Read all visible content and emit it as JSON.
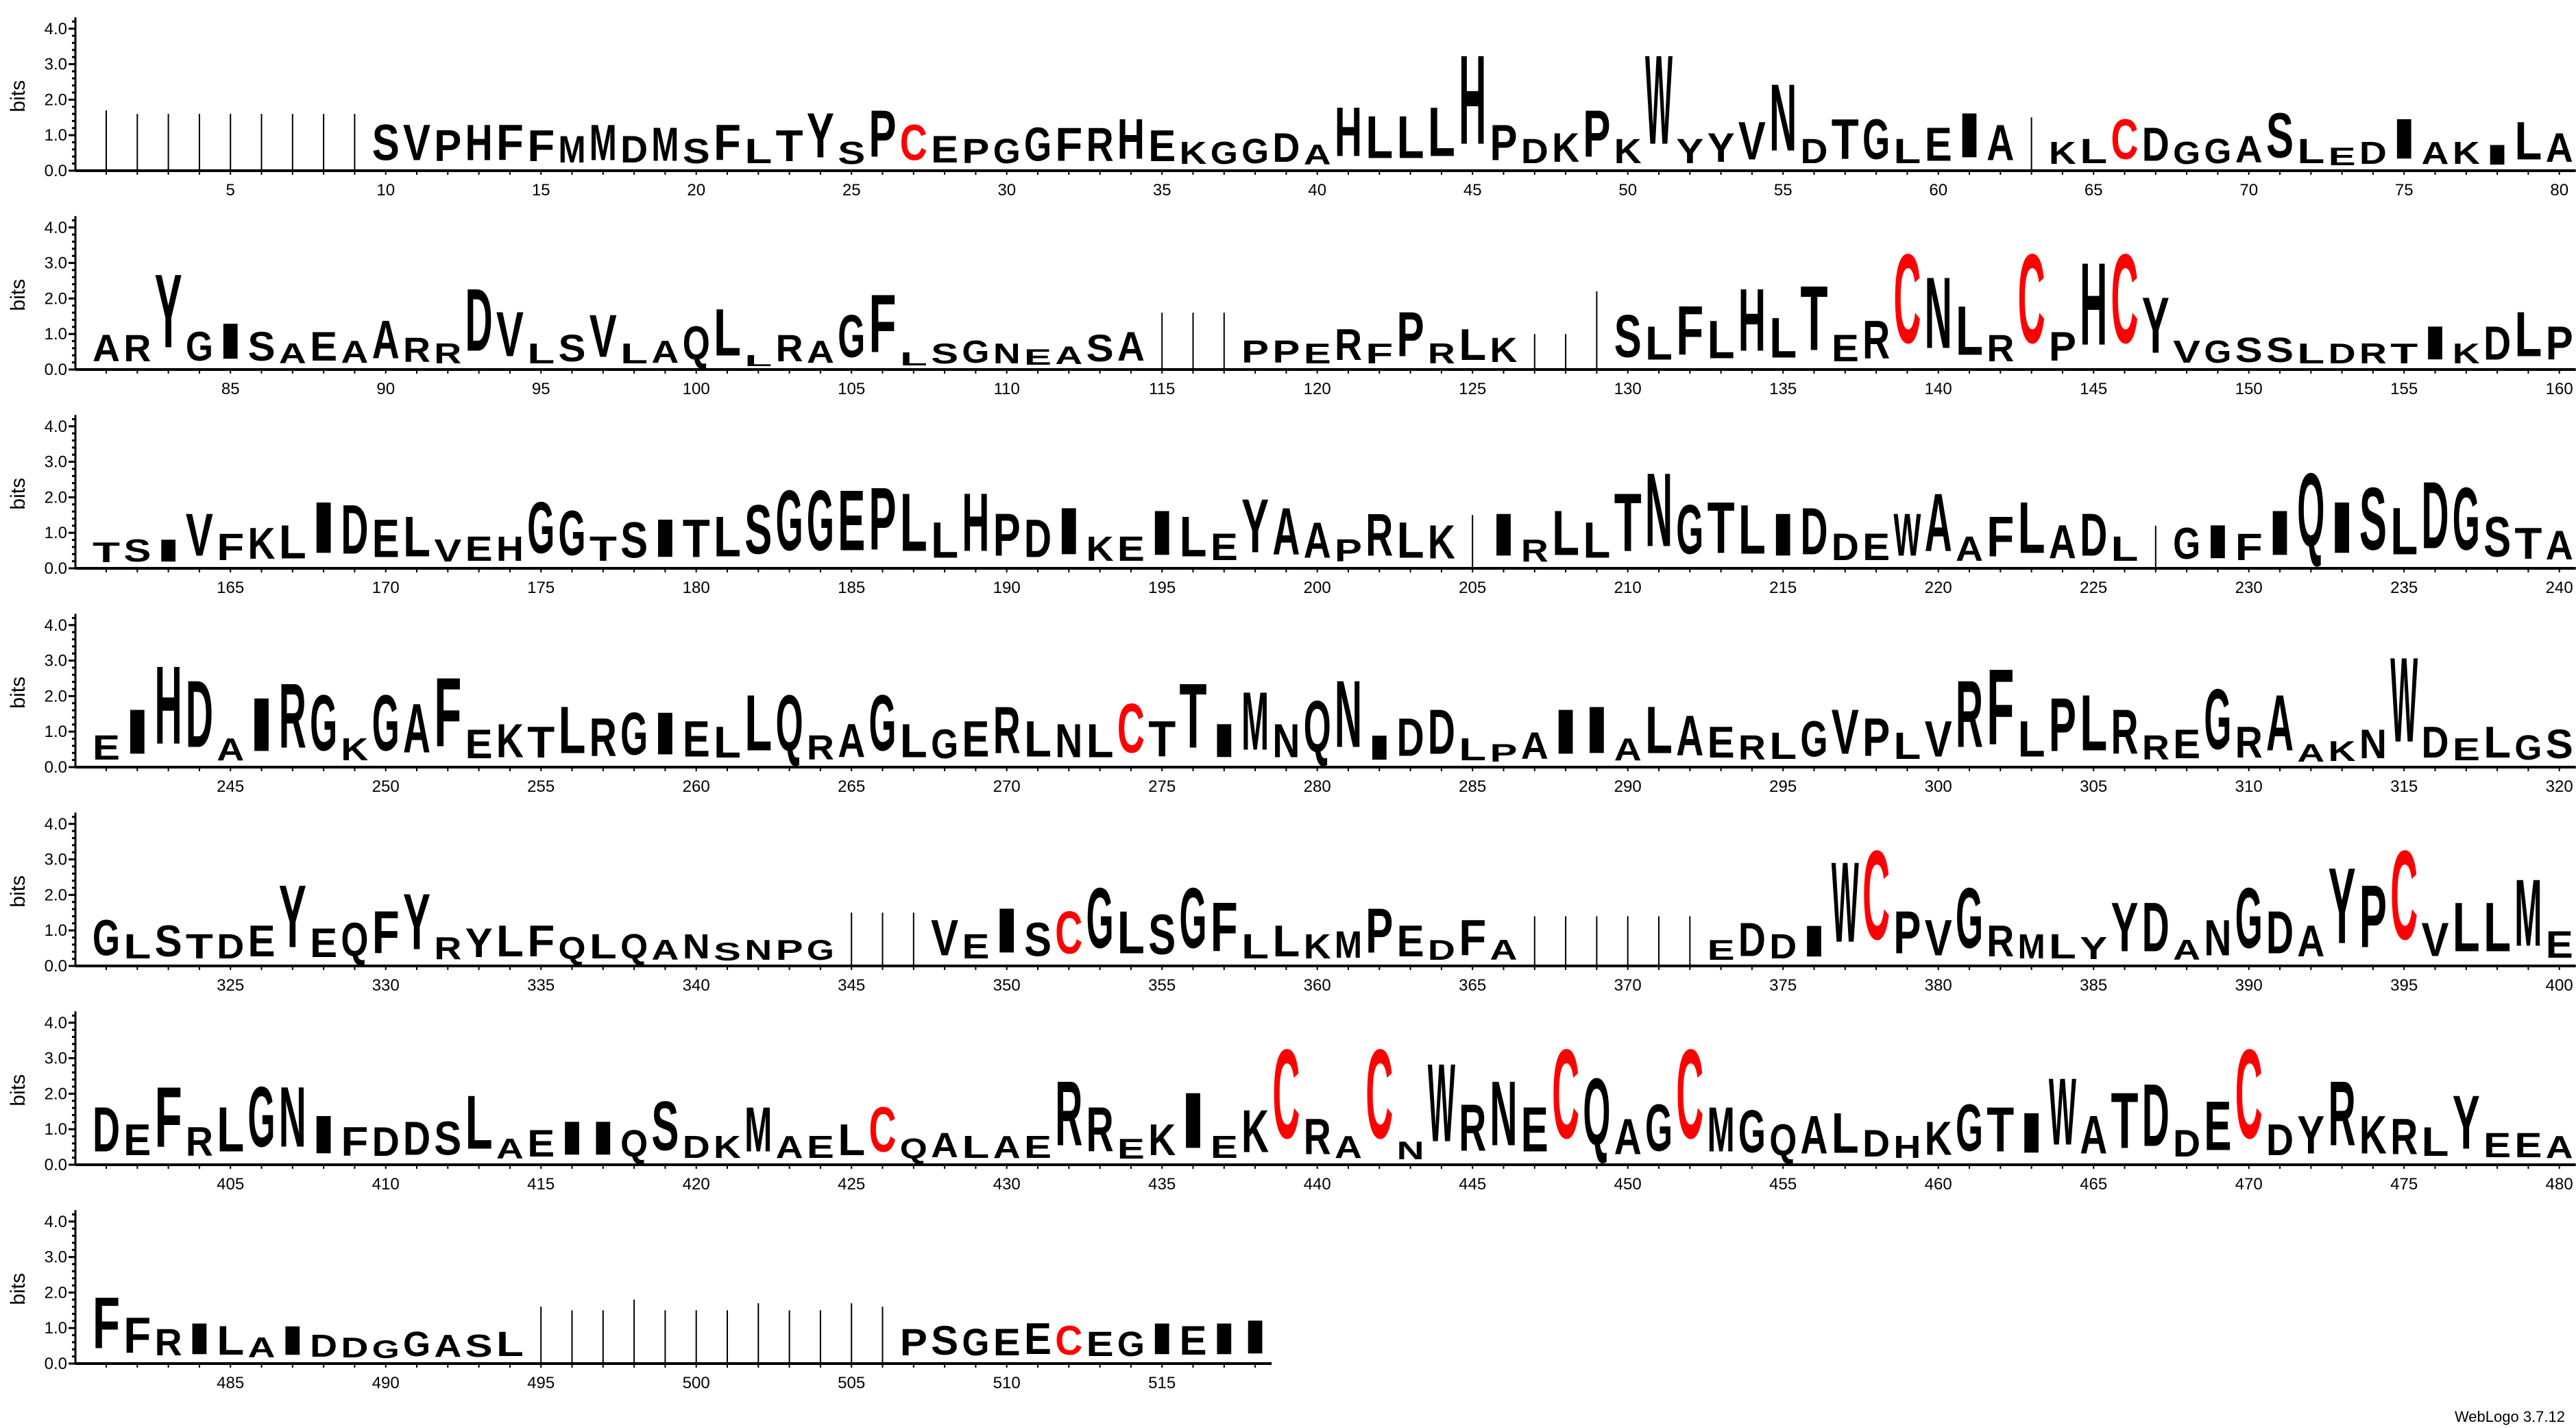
{
  "chart_data": {
    "type": "sequence-logo",
    "ylabel": "bits",
    "ylim": [
      0,
      4.32
    ],
    "yticks": [
      "0.0",
      "1.0",
      "2.0",
      "3.0",
      "4.0"
    ],
    "x_tick_step": 5,
    "positions_per_row": 80,
    "first_position": 1,
    "last_position": 518,
    "gap_symbol": "-",
    "colors": {
      "default": "#000000",
      "C": "#ff0000",
      "axis": "#000000",
      "gap_line": "#000000"
    },
    "top_residues": "---------SVPHFFMMDMSFLTYSPCEPGGFRHEKGGDAHLLLHPDKPKWYYVNDTGLEIA-KLCDGGASLEDIAKILAARYGISAEAARRDVLSVLAQLLRAGFLSGNEASA---PPERFPRLK---SLFLHLTERCNLRCPHCYVGSSLDRTIKDLPTSIVFKLIDELVEHGGTSITLSGGEPLLHPDIKEILEYAAPRLK-IRLLTNGTLIDDEWAAFLADL-GIFIQISLDGSTAEIHDAIRGKGAFEKTLRGIELLQRAGLGERLNLCTTIMNQNIDDLPAIIALAERLGVPLVRFLPLRREGRAAKNWDELGSGLSTDEYEQFYRYLFQLQANSNPG---VEISCGLSGFLLKMPEDFA------EDDIWCPVGRMLYYDANGDAYPCVLLMEDEFRLGNIFDDSLAEIIQSDKMAELCQALAERREKIEKCRACNWRNECQAGCMGQALDHKGTIWATDDECDYRKRLYEEAFFRILAIDDGGASL------------PSGEECEGIEII",
    "bits": [
      1.7,
      1.6,
      1.6,
      1.6,
      1.6,
      1.6,
      1.6,
      1.6,
      1.6,
      1.6,
      1.6,
      1.4,
      1.6,
      1.6,
      1.4,
      1.2,
      1.6,
      1.2,
      1.5,
      1.1,
      1.6,
      1.1,
      1.4,
      2.0,
      1.0,
      2.1,
      1.6,
      1.2,
      1.1,
      1.1,
      1.5,
      1.5,
      1.5,
      1.8,
      1.4,
      1.0,
      1.0,
      1.1,
      1.3,
      0.9,
      2.2,
      1.9,
      1.9,
      2.2,
      4.0,
      1.6,
      1.1,
      1.3,
      2.1,
      1.1,
      4.0,
      1.1,
      1.3,
      1.7,
      3.0,
      1.1,
      1.8,
      1.8,
      1.1,
      1.5,
      2.0,
      1.6,
      1.5,
      1.0,
      1.1,
      1.8,
      1.5,
      1.0,
      1.1,
      1.2,
      2.0,
      1.1,
      0.8,
      1.0,
      1.8,
      1.0,
      1.0,
      0.9,
      1.7,
      1.3,
      1.2,
      1.2,
      3.3,
      1.3,
      1.6,
      1.3,
      0.9,
      1.3,
      1.0,
      1.7,
      1.1,
      0.9,
      2.8,
      2.0,
      0.9,
      1.2,
      1.9,
      0.9,
      1.0,
      1.5,
      2.1,
      0.5,
      1.2,
      1.0,
      1.9,
      2.6,
      0.6,
      0.9,
      1.0,
      0.9,
      0.7,
      0.8,
      1.2,
      1.3,
      1.6,
      1.6,
      1.6,
      1.0,
      1.0,
      0.9,
      1.4,
      0.9,
      2.0,
      0.9,
      1.4,
      1.1,
      1.0,
      1.0,
      2.2,
      1.9,
      1.5,
      2.2,
      1.7,
      2.8,
      1.8,
      2.9,
      1.2,
      1.7,
      4.0,
      3.2,
      2.2,
      1.2,
      4.0,
      1.3,
      3.7,
      4.0,
      2.5,
      1.0,
      1.0,
      1.1,
      1.1,
      0.9,
      0.9,
      0.9,
      0.9,
      1.5,
      0.9,
      1.5,
      2.0,
      1.5,
      0.9,
      1.0,
      1.0,
      1.9,
      1.2,
      1.4,
      1.5,
      2.3,
      2.2,
      1.7,
      1.8,
      1.0,
      1.1,
      1.1,
      2.3,
      2.0,
      1.1,
      1.6,
      1.7,
      1.7,
      1.8,
      2.2,
      2.7,
      2.7,
      2.7,
      2.8,
      2.6,
      1.6,
      2.6,
      1.9,
      1.7,
      2.1,
      1.1,
      1.1,
      2.0,
      1.8,
      1.2,
      2.4,
      2.1,
      1.6,
      1.0,
      1.9,
      1.6,
      1.5,
      1.5,
      1.9,
      1.0,
      2.0,
      1.6,
      2.6,
      3.3,
      2.2,
      2.3,
      2.2,
      1.9,
      2.1,
      1.2,
      1.2,
      1.9,
      2.6,
      1.1,
      1.8,
      2.3,
      1.5,
      1.9,
      1.1,
      1.2,
      1.4,
      1.5,
      1.2,
      2.0,
      3.3,
      2.3,
      2.8,
      2.1,
      3.0,
      2.8,
      1.8,
      1.4,
      1.3,
      1.1,
      2.0,
      3.5,
      3.0,
      1.0,
      2.4,
      2.9,
      2.5,
      1.0,
      2.5,
      2.2,
      3.1,
      1.3,
      1.5,
      1.4,
      2.1,
      1.7,
      1.9,
      1.9,
      1.6,
      1.4,
      2.5,
      2.5,
      1.1,
      1.5,
      2.5,
      1.5,
      1.3,
      1.6,
      2.1,
      1.6,
      1.5,
      1.5,
      2.2,
      1.6,
      2.9,
      1.5,
      2.6,
      1.5,
      2.3,
      3.0,
      1.1,
      1.7,
      2.0,
      1.0,
      0.8,
      1.2,
      2.0,
      2.1,
      1.0,
      2.1,
      1.8,
      1.4,
      1.1,
      1.2,
      1.6,
      2.0,
      1.7,
      1.2,
      1.6,
      3.0,
      3.4,
      1.6,
      2.4,
      2.5,
      2.0,
      1.1,
      1.3,
      2.7,
      1.4,
      2.5,
      0.8,
      0.9,
      1.3,
      3.8,
      1.4,
      1.0,
      1.4,
      1.1,
      1.3,
      1.6,
      1.1,
      1.4,
      1.1,
      1.1,
      1.4,
      2.8,
      1.3,
      1.5,
      1.9,
      2.5,
      1.0,
      1.3,
      1.4,
      1.4,
      1.0,
      1.1,
      1.1,
      0.9,
      1.1,
      0.8,
      0.9,
      0.9,
      0.9,
      1.5,
      1.5,
      1.5,
      1.6,
      1.1,
      2.0,
      1.5,
      1.9,
      2.7,
      1.9,
      1.8,
      2.7,
      2.2,
      1.1,
      1.4,
      1.1,
      1.2,
      2.0,
      1.4,
      0.9,
      1.6,
      0.9,
      1.4,
      1.4,
      1.4,
      1.4,
      1.4,
      1.4,
      0.9,
      1.5,
      1.1,
      1.4,
      3.6,
      4.0,
      1.9,
      1.6,
      2.7,
      1.4,
      1.1,
      1.1,
      1.0,
      2.2,
      2.2,
      0.9,
      1.6,
      2.7,
      1.9,
      1.4,
      3.4,
      2.8,
      4.0,
      1.5,
      2.2,
      2.2,
      3.0,
      1.2,
      2.0,
      1.4,
      2.7,
      1.3,
      2.0,
      2.7,
      2.7,
      1.7,
      1.3,
      1.3,
      1.5,
      1.5,
      2.4,
      0.9,
      1.2,
      1.5,
      1.5,
      1.2,
      2.2,
      1.0,
      1.0,
      2.0,
      1.0,
      1.0,
      1.4,
      2.0,
      0.9,
      1.1,
      1.0,
      1.0,
      1.0,
      2.9,
      2.0,
      0.9,
      1.4,
      2.5,
      1.0,
      1.9,
      4.0,
      1.6,
      1.0,
      4.0,
      0.8,
      3.5,
      2.1,
      2.9,
      2.0,
      4.0,
      3.0,
      1.6,
      2.1,
      4.0,
      2.0,
      1.9,
      1.4,
      1.7,
      1.8,
      1.2,
      1.0,
      1.5,
      2.1,
      2.0,
      1.8,
      3.0,
      1.7,
      2.5,
      2.8,
      1.2,
      2.2,
      4.0,
      1.4,
      1.7,
      2.9,
      1.7,
      1.6,
      1.3,
      2.4,
      1.1,
      1.1,
      1.0,
      2.3,
      1.6,
      1.2,
      1.4,
      1.3,
      0.9,
      1.3,
      1.0,
      0.9,
      0.8,
      1.1,
      1.0,
      1.0,
      1.1,
      1.6,
      1.5,
      1.5,
      1.8,
      1.5,
      1.5,
      1.5,
      1.7,
      1.5,
      1.5,
      1.7,
      1.6,
      1.2,
      1.3,
      1.2,
      1.2,
      1.4,
      1.3,
      1.1,
      1.1,
      1.4,
      1.3,
      1.4,
      1.5
    ]
  },
  "footer": {
    "credit": "WebLogo 3.7.12"
  }
}
